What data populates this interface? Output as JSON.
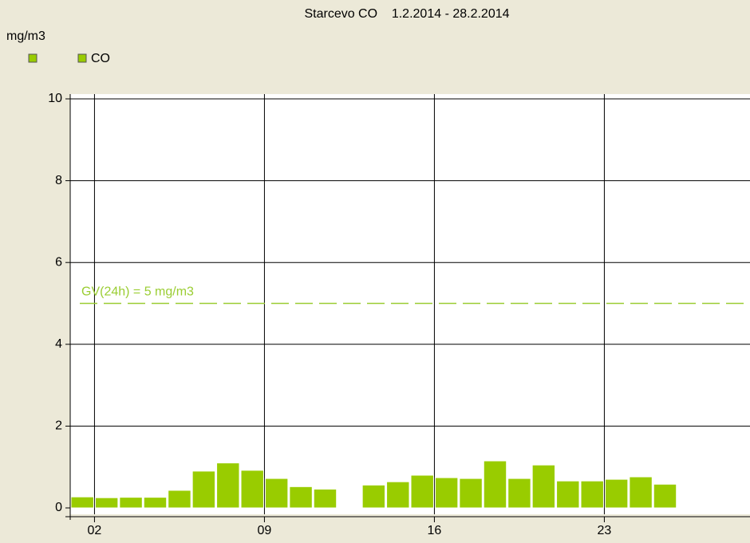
{
  "chart_data": {
    "type": "bar",
    "title": "Starcevo CO    1.2.2014 - 28.2.2014",
    "y_label": "mg/m3",
    "x": [
      1,
      2,
      3,
      4,
      5,
      6,
      7,
      8,
      9,
      10,
      11,
      12,
      13,
      14,
      15,
      16,
      17,
      18,
      19,
      20,
      21,
      22,
      23,
      24,
      25,
      26,
      27,
      28
    ],
    "series": [
      {
        "name": "CO",
        "color": "#99cc00",
        "values": [
          0.27,
          0.25,
          0.26,
          0.26,
          0.43,
          0.9,
          1.1,
          0.92,
          0.72,
          0.52,
          0.46,
          null,
          0.56,
          0.64,
          0.8,
          0.74,
          0.72,
          1.15,
          0.72,
          1.05,
          0.66,
          0.66,
          0.7,
          0.76,
          0.58,
          null,
          null,
          null
        ]
      }
    ],
    "xlim": [
      1,
      29
    ],
    "xticks": [
      {
        "value": 2,
        "label": "02"
      },
      {
        "value": 9,
        "label": "09"
      },
      {
        "value": 16,
        "label": "16"
      },
      {
        "value": 23,
        "label": "23"
      }
    ],
    "ylim": [
      0,
      10
    ],
    "yticks": [
      0,
      2,
      4,
      6,
      8,
      10
    ],
    "grid": true,
    "reference_line": {
      "value": 5,
      "label": "GV(24h) = 5 mg/m3",
      "color": "#9acd32"
    }
  }
}
